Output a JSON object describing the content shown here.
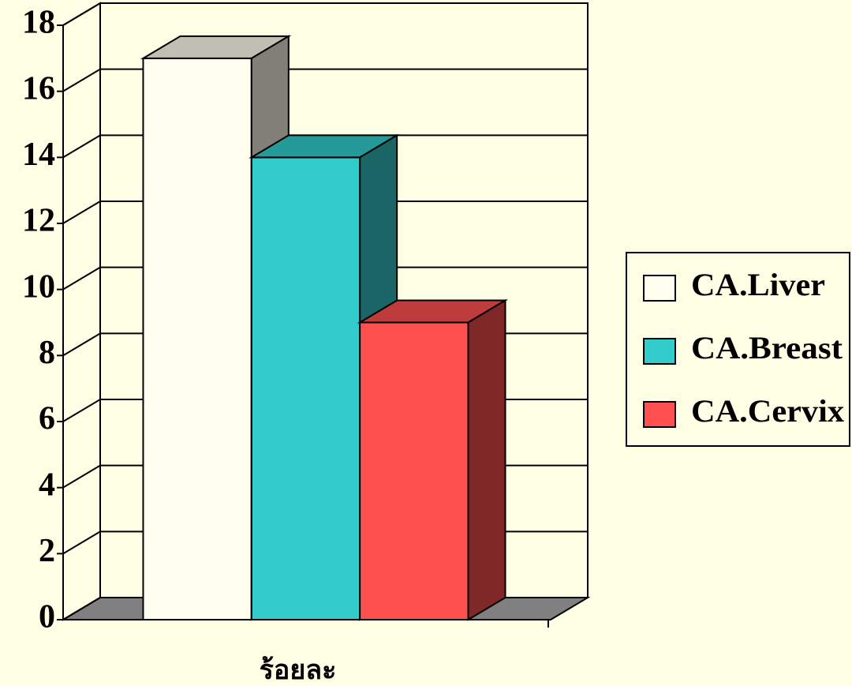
{
  "chart_data": {
    "type": "bar3d",
    "categories": [
      "ร้อยละ"
    ],
    "series": [
      {
        "name": "CA.Liver",
        "color": "#fffff0",
        "values": [
          17
        ]
      },
      {
        "name": "CA.Breast",
        "color": "#33cccc",
        "values": [
          14
        ]
      },
      {
        "name": "CA.Cervix",
        "color": "#ff5050",
        "values": [
          9
        ]
      }
    ],
    "ylim": [
      0,
      18
    ],
    "yticks": [
      0,
      2,
      4,
      6,
      8,
      10,
      12,
      14,
      16,
      18
    ],
    "grid": true,
    "legend": "right"
  }
}
